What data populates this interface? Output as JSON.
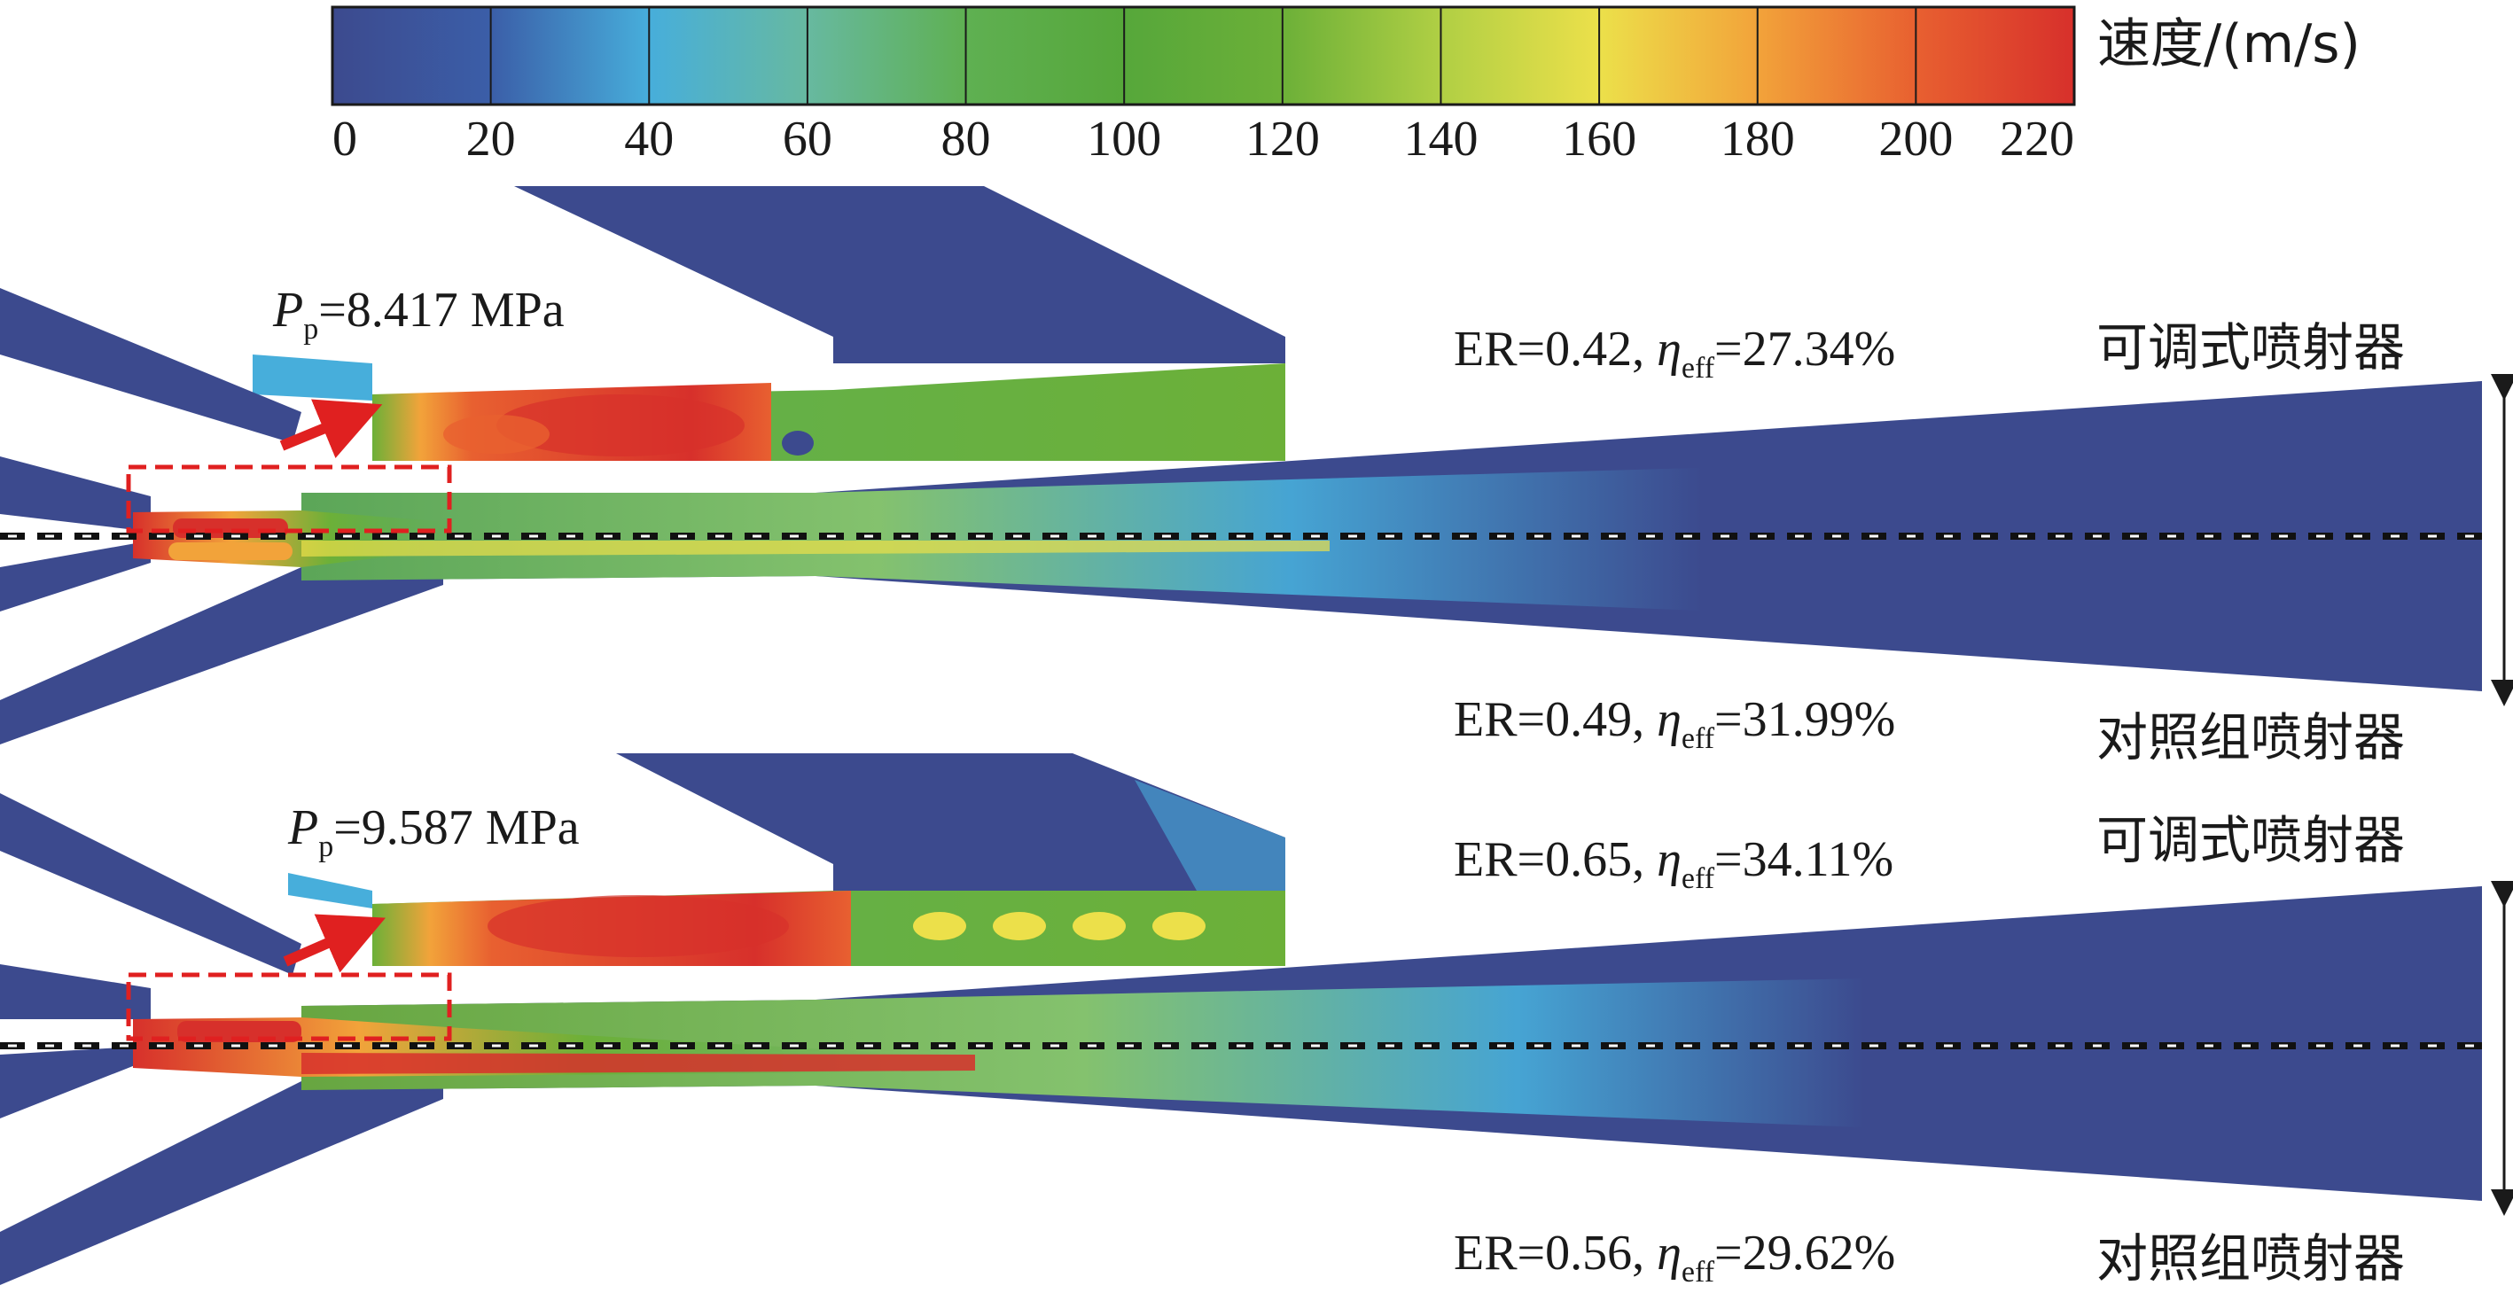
{
  "colorbar": {
    "title": "速度/(m/s)",
    "ticks": [
      "0",
      "20",
      "40",
      "60",
      "80",
      "100",
      "120",
      "140",
      "160",
      "180",
      "200",
      "220"
    ],
    "stops": [
      "#3c4a8e",
      "#3b5ea8",
      "#47aedb",
      "#67b9a0",
      "#5fb052",
      "#56a73a",
      "#6cb038",
      "#b0cf44",
      "#ece04a",
      "#f2a33a",
      "#e86030",
      "#d7302b"
    ]
  },
  "panels": [
    {
      "pressure": {
        "symbol": "P",
        "subscript": "p",
        "value": "=8.417 MPa"
      },
      "top_result": {
        "er": "ER=0.42, ",
        "eta": "η",
        "sub": "eff",
        "value": "=27.34%"
      },
      "top_label": "可调式喷射器",
      "bottom_result": {
        "er": "ER=0.49, ",
        "eta": "η",
        "sub": "eff",
        "value": "=31.99%"
      },
      "bottom_label": "对照组喷射器"
    },
    {
      "pressure": {
        "symbol": "P",
        "subscript": "p",
        "value": "=9.587 MPa"
      },
      "top_result": {
        "er": "ER=0.65, ",
        "eta": "η",
        "sub": "eff",
        "value": "=34.11%"
      },
      "top_label": "可调式喷射器",
      "bottom_result": {
        "er": "ER=0.56, ",
        "eta": "η",
        "sub": "eff",
        "value": "=29.62%"
      },
      "bottom_label": "对照组喷射器"
    }
  ]
}
